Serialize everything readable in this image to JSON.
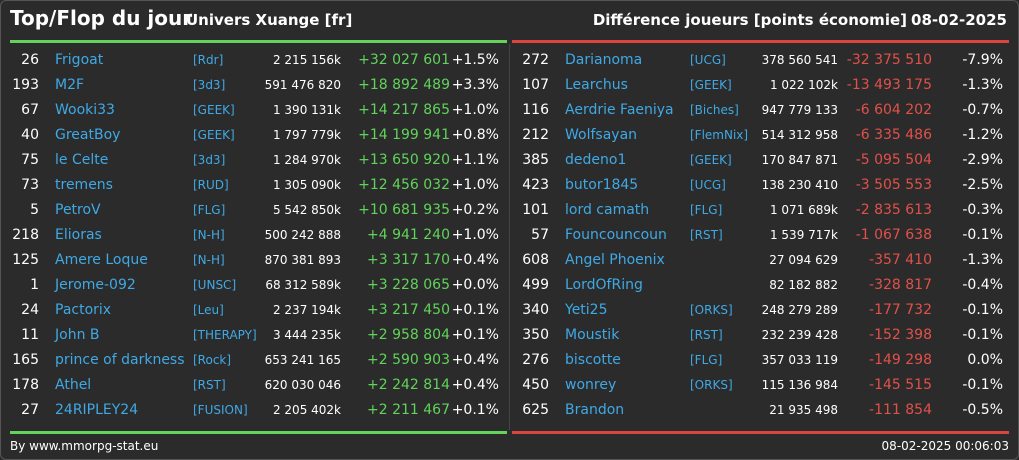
{
  "header": {
    "title": "Top/Flop du jour",
    "universe": "Univers Xuange [fr]",
    "diff_label": "Différence joueurs [points économie]",
    "date": "08-02-2025"
  },
  "colors": {
    "gain": "#5fd45a",
    "loss": "#e2504a",
    "link": "#3fa9e6"
  },
  "top": [
    {
      "rank": "26",
      "name": "Frigoat",
      "guild": "[Rdr]",
      "points": "2 215 156k",
      "delta": "+32 027 601",
      "pct": "+1.5%"
    },
    {
      "rank": "193",
      "name": "M2F",
      "guild": "[3d3]",
      "points": "591 476 820",
      "delta": "+18 892 489",
      "pct": "+3.3%"
    },
    {
      "rank": "67",
      "name": "Wooki33",
      "guild": "[GEEK]",
      "points": "1 390 131k",
      "delta": "+14 217 865",
      "pct": "+1.0%"
    },
    {
      "rank": "40",
      "name": "GreatBoy",
      "guild": "[GEEK]",
      "points": "1 797 779k",
      "delta": "+14 199 941",
      "pct": "+0.8%"
    },
    {
      "rank": "75",
      "name": "le Celte",
      "guild": "[3d3]",
      "points": "1 284 970k",
      "delta": "+13 650 920",
      "pct": "+1.1%"
    },
    {
      "rank": "73",
      "name": "tremens",
      "guild": "[RUD]",
      "points": "1 305 090k",
      "delta": "+12 456 032",
      "pct": "+1.0%"
    },
    {
      "rank": "5",
      "name": "PetroV",
      "guild": "[FLG]",
      "points": "5 542 850k",
      "delta": "+10 681 935",
      "pct": "+0.2%"
    },
    {
      "rank": "218",
      "name": "Elioras",
      "guild": "[N-H]",
      "points": "500 242 888",
      "delta": "+4 941 240",
      "pct": "+1.0%"
    },
    {
      "rank": "125",
      "name": "Amere Loque",
      "guild": "[N-H]",
      "points": "870 381 893",
      "delta": "+3 317 170",
      "pct": "+0.4%"
    },
    {
      "rank": "1",
      "name": "Jerome-092",
      "guild": "[UNSC]",
      "points": "68 312 589k",
      "delta": "+3 228 065",
      "pct": "+0.0%"
    },
    {
      "rank": "24",
      "name": "Pactorix",
      "guild": "[Leu]",
      "points": "2 237 194k",
      "delta": "+3 217 450",
      "pct": "+0.1%"
    },
    {
      "rank": "11",
      "name": "John B",
      "guild": "[THERAPY]",
      "points": "3 444 235k",
      "delta": "+2 958 804",
      "pct": "+0.1%"
    },
    {
      "rank": "165",
      "name": "prince of darkness",
      "guild": "[Rock]",
      "points": "653 241 165",
      "delta": "+2 590 903",
      "pct": "+0.4%"
    },
    {
      "rank": "178",
      "name": "Athel",
      "guild": "[RST]",
      "points": "620 030 046",
      "delta": "+2 242 814",
      "pct": "+0.4%"
    },
    {
      "rank": "27",
      "name": "24RIPLEY24",
      "guild": "[FUSION]",
      "points": "2 205 402k",
      "delta": "+2 211 467",
      "pct": "+0.1%"
    }
  ],
  "flop": [
    {
      "rank": "272",
      "name": "Darianoma",
      "guild": "[UCG]",
      "points": "378 560 541",
      "delta": "-32 375 510",
      "pct": "-7.9%"
    },
    {
      "rank": "107",
      "name": "Learchus",
      "guild": "[GEEK]",
      "points": "1 022 102k",
      "delta": "-13 493 175",
      "pct": "-1.3%"
    },
    {
      "rank": "116",
      "name": "Aerdrie Faeniya",
      "guild": "[Biches]",
      "points": "947 779 133",
      "delta": "-6 604 202",
      "pct": "-0.7%"
    },
    {
      "rank": "212",
      "name": "Wolfsayan",
      "guild": "[FlemNix]",
      "points": "514 312 958",
      "delta": "-6 335 486",
      "pct": "-1.2%"
    },
    {
      "rank": "385",
      "name": "dedeno1",
      "guild": "[GEEK]",
      "points": "170 847 871",
      "delta": "-5 095 504",
      "pct": "-2.9%"
    },
    {
      "rank": "423",
      "name": "butor1845",
      "guild": "[UCG]",
      "points": "138 230 410",
      "delta": "-3 505 553",
      "pct": "-2.5%"
    },
    {
      "rank": "101",
      "name": "lord camath",
      "guild": "[FLG]",
      "points": "1 071 689k",
      "delta": "-2 835 613",
      "pct": "-0.3%"
    },
    {
      "rank": "57",
      "name": "Founcouncoun",
      "guild": "[RST]",
      "points": "1 539 717k",
      "delta": "-1 067 638",
      "pct": "-0.1%"
    },
    {
      "rank": "608",
      "name": "Angel Phoenix",
      "guild": "",
      "points": "27 094 629",
      "delta": "-357 410",
      "pct": "-1.3%"
    },
    {
      "rank": "499",
      "name": "LordOfRing",
      "guild": "",
      "points": "82 182 882",
      "delta": "-328 817",
      "pct": "-0.4%"
    },
    {
      "rank": "340",
      "name": "Yeti25",
      "guild": "[ORKS]",
      "points": "248 279 289",
      "delta": "-177 732",
      "pct": "-0.1%"
    },
    {
      "rank": "350",
      "name": "Moustik",
      "guild": "[RST]",
      "points": "232 239 428",
      "delta": "-152 398",
      "pct": "-0.1%"
    },
    {
      "rank": "276",
      "name": "biscotte",
      "guild": "[FLG]",
      "points": "357 033 119",
      "delta": "-149 298",
      "pct": "0.0%"
    },
    {
      "rank": "450",
      "name": "wonrey",
      "guild": "[ORKS]",
      "points": "115 136 984",
      "delta": "-145 515",
      "pct": "-0.1%"
    },
    {
      "rank": "625",
      "name": "Brandon",
      "guild": "",
      "points": "21 935 498",
      "delta": "-111 854",
      "pct": "-0.5%"
    }
  ],
  "footer": {
    "source": "By www.mmorpg-stat.eu",
    "timestamp": "08-02-2025 00:06:03"
  }
}
